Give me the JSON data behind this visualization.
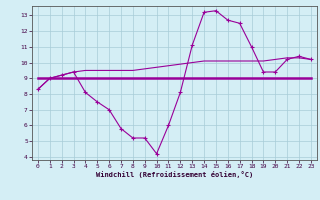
{
  "xlabel": "Windchill (Refroidissement éolien,°C)",
  "background_color": "#d4eef5",
  "grid_color": "#a8ccd8",
  "line_color": "#990099",
  "xlim": [
    -0.5,
    23.5
  ],
  "ylim": [
    3.8,
    13.6
  ],
  "yticks": [
    4,
    5,
    6,
    7,
    8,
    9,
    10,
    11,
    12,
    13
  ],
  "xticks": [
    0,
    1,
    2,
    3,
    4,
    5,
    6,
    7,
    8,
    9,
    10,
    11,
    12,
    13,
    14,
    15,
    16,
    17,
    18,
    19,
    20,
    21,
    22,
    23
  ],
  "line1_x": [
    0,
    1,
    2,
    3,
    4,
    5,
    6,
    7,
    8,
    9,
    10,
    11,
    12,
    13,
    14,
    15,
    16,
    17,
    18,
    19,
    20,
    21,
    22,
    23
  ],
  "line1_y": [
    8.3,
    9.0,
    9.2,
    9.4,
    8.1,
    7.5,
    7.0,
    5.8,
    5.2,
    5.2,
    4.2,
    6.0,
    8.1,
    11.1,
    13.2,
    13.3,
    12.7,
    12.5,
    11.0,
    9.4,
    9.4,
    10.2,
    10.4,
    10.2
  ],
  "line2_x": [
    0,
    1,
    2,
    3,
    4,
    5,
    6,
    7,
    8,
    9,
    10,
    11,
    12,
    13,
    14,
    15,
    16,
    17,
    18,
    19,
    20,
    21,
    22,
    23
  ],
  "line2_y": [
    9.0,
    9.0,
    9.0,
    9.0,
    9.0,
    9.0,
    9.0,
    9.0,
    9.0,
    9.0,
    9.0,
    9.0,
    9.0,
    9.0,
    9.0,
    9.0,
    9.0,
    9.0,
    9.0,
    9.0,
    9.0,
    9.0,
    9.0,
    9.0
  ],
  "line3_x": [
    0,
    1,
    2,
    3,
    4,
    5,
    6,
    7,
    8,
    9,
    10,
    11,
    12,
    13,
    14,
    15,
    16,
    17,
    18,
    19,
    20,
    21,
    22,
    23
  ],
  "line3_y": [
    8.3,
    9.0,
    9.2,
    9.4,
    9.5,
    9.5,
    9.5,
    9.5,
    9.5,
    9.6,
    9.7,
    9.8,
    9.9,
    10.0,
    10.1,
    10.1,
    10.1,
    10.1,
    10.1,
    10.1,
    10.2,
    10.3,
    10.3,
    10.2
  ]
}
